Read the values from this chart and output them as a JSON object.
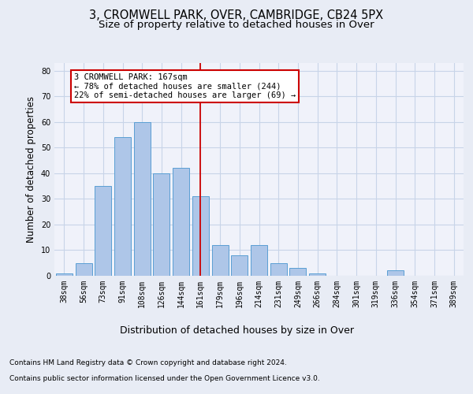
{
  "title": "3, CROMWELL PARK, OVER, CAMBRIDGE, CB24 5PX",
  "subtitle": "Size of property relative to detached houses in Over",
  "xlabel": "Distribution of detached houses by size in Over",
  "ylabel": "Number of detached properties",
  "bar_labels": [
    "38sqm",
    "56sqm",
    "73sqm",
    "91sqm",
    "108sqm",
    "126sqm",
    "144sqm",
    "161sqm",
    "179sqm",
    "196sqm",
    "214sqm",
    "231sqm",
    "249sqm",
    "266sqm",
    "284sqm",
    "301sqm",
    "319sqm",
    "336sqm",
    "354sqm",
    "371sqm",
    "389sqm"
  ],
  "bar_values": [
    1,
    5,
    35,
    54,
    60,
    40,
    42,
    31,
    12,
    8,
    12,
    5,
    3,
    1,
    0,
    0,
    0,
    2,
    0,
    0,
    0
  ],
  "bar_color": "#aec6e8",
  "bar_edge_color": "#5a9fd4",
  "property_line_index": 7,
  "property_line_color": "#cc0000",
  "annotation_text": "3 CROMWELL PARK: 167sqm\n← 78% of detached houses are smaller (244)\n22% of semi-detached houses are larger (69) →",
  "annotation_box_color": "#ffffff",
  "annotation_border_color": "#cc0000",
  "ylim": [
    0,
    83
  ],
  "yticks": [
    0,
    10,
    20,
    30,
    40,
    50,
    60,
    70,
    80
  ],
  "grid_color": "#c8d4e8",
  "bg_color": "#e8ecf5",
  "plot_bg_color": "#f0f2fa",
  "footer_line1": "Contains HM Land Registry data © Crown copyright and database right 2024.",
  "footer_line2": "Contains public sector information licensed under the Open Government Licence v3.0.",
  "title_fontsize": 10.5,
  "subtitle_fontsize": 9.5,
  "xlabel_fontsize": 9,
  "ylabel_fontsize": 8.5,
  "tick_fontsize": 7,
  "footer_fontsize": 6.5,
  "annotation_fontsize": 7.5
}
